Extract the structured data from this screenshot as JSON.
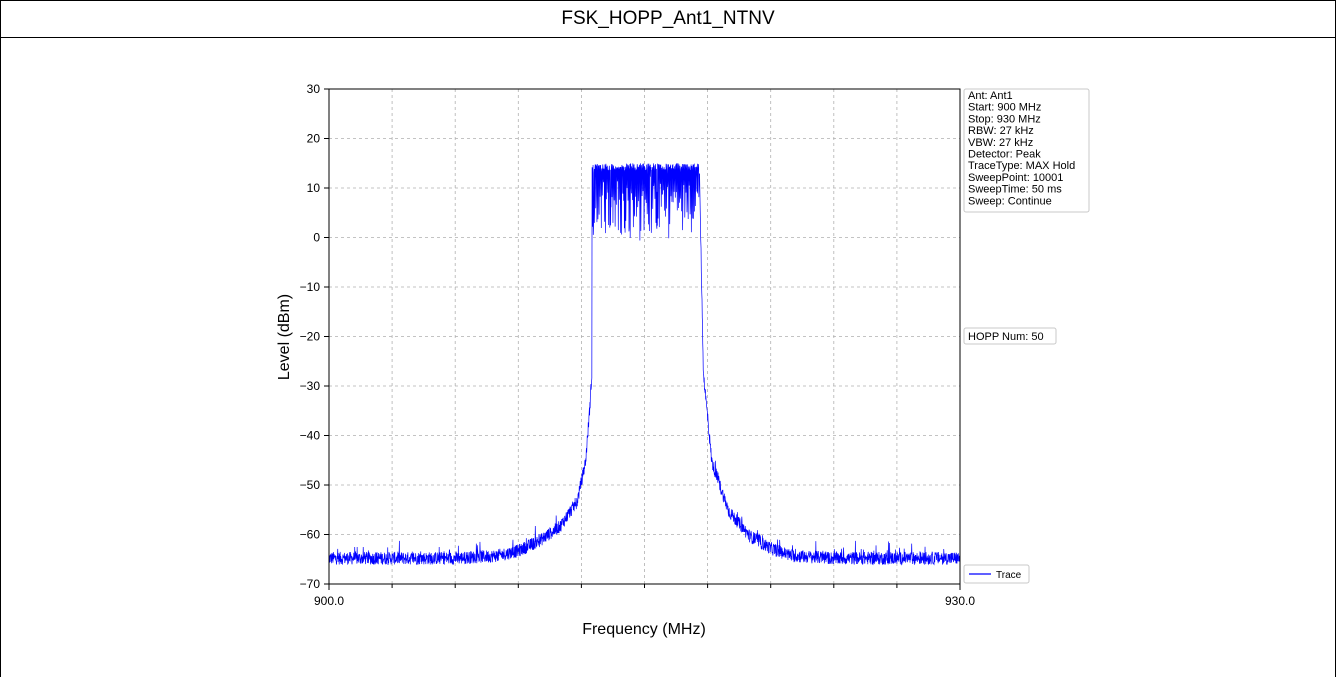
{
  "page": {
    "title": "FSK_HOPP_Ant1_NTNV"
  },
  "chart_data": {
    "type": "line",
    "title": "FSK_HOPP_Ant1_NTNV",
    "xlabel": "Frequency (MHz)",
    "ylabel": "Level (dBm)",
    "xlim": [
      900.0,
      930.0
    ],
    "ylim": [
      -70,
      30
    ],
    "x_tick_labels": [
      "900.0",
      "930.0"
    ],
    "y_ticks": [
      30,
      20,
      10,
      0,
      -10,
      -20,
      -30,
      -40,
      -50,
      -60,
      -70
    ],
    "y_tick_labels": [
      "30",
      "20",
      "10",
      "0",
      "−10",
      "−20",
      "−30",
      "−40",
      "−50",
      "−60",
      "−70"
    ],
    "grid": true,
    "legend": {
      "placement": "bottom-right outside",
      "entries": [
        "Trace"
      ]
    },
    "info_box": [
      "Ant: Ant1",
      "Start: 900 MHz",
      "Stop: 930 MHz",
      "RBW: 27 kHz",
      "VBW: 27 kHz",
      "Detector: Peak",
      "TraceType: MAX Hold",
      "SweepPoint: 10001",
      "SweepTime: 50 ms",
      "Sweep: Continue"
    ],
    "hopp_label": "HOPP Num: 50",
    "series": [
      {
        "name": "Trace",
        "color": "#0000ff",
        "x": [
          900.0,
          902.0,
          904.0,
          906.0,
          908.0,
          909.0,
          910.0,
          911.0,
          911.8,
          912.2,
          912.4,
          912.5,
          912.8,
          913.0,
          913.2,
          913.6,
          914.0,
          914.4,
          914.8,
          915.2,
          915.6,
          916.0,
          916.4,
          916.8,
          917.2,
          917.4,
          917.6,
          917.8,
          918.2,
          919.0,
          920.0,
          921.0,
          922.0,
          924.0,
          926.0,
          928.0,
          930.0
        ],
        "y": [
          -65.5,
          -65.5,
          -65.5,
          -65.5,
          -65,
          -64,
          -62,
          -59,
          -54,
          -46,
          -35,
          -28,
          15,
          2,
          14,
          8,
          15,
          5,
          14,
          4,
          15,
          7,
          14,
          3,
          15,
          6,
          15,
          -28,
          -46,
          -56,
          -61,
          -63.5,
          -65,
          -65.5,
          -65.5,
          -65.5,
          -65.5
        ]
      }
    ]
  }
}
